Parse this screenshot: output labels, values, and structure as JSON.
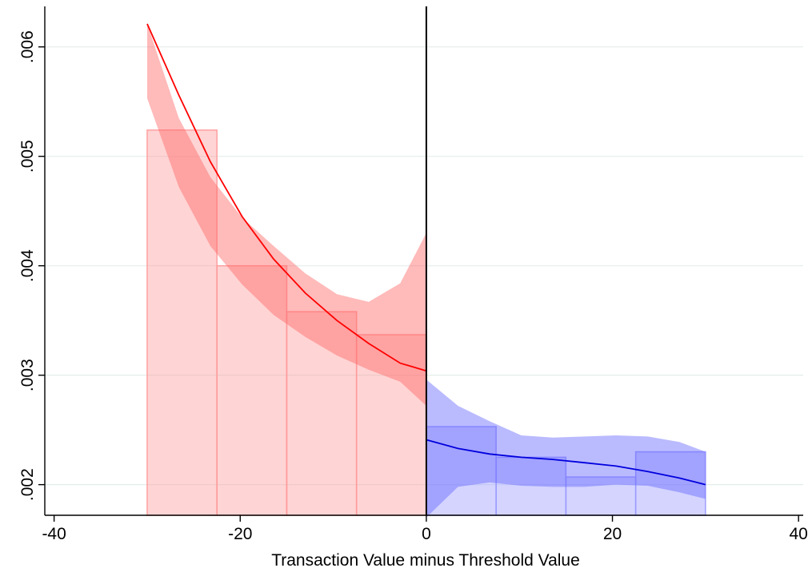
{
  "chart_data": {
    "type": "bar",
    "title": "",
    "xlabel": "Transaction Value minus Threshold Value",
    "ylabel": "",
    "xlim": [
      -41,
      40.5
    ],
    "ylim": [
      0.00172,
      0.00637
    ],
    "grid": "horizontal",
    "cutoff_x": 0,
    "x_ticks": [
      {
        "value": -40,
        "label": "-40"
      },
      {
        "value": -20,
        "label": "-20"
      },
      {
        "value": 0,
        "label": "0"
      },
      {
        "value": 20,
        "label": "20"
      },
      {
        "value": 40,
        "label": "40"
      }
    ],
    "y_ticks": [
      {
        "value": 0.002,
        "label": ".002"
      },
      {
        "value": 0.003,
        "label": ".003"
      },
      {
        "value": 0.004,
        "label": ".004"
      },
      {
        "value": 0.005,
        "label": ".005"
      },
      {
        "value": 0.006,
        "label": ".006"
      }
    ],
    "histogram_left": {
      "color": "#ff9999",
      "bins": [
        {
          "x0": -30,
          "x1": -22.5,
          "value": 0.00524
        },
        {
          "x0": -22.5,
          "x1": -15,
          "value": 0.004
        },
        {
          "x0": -15,
          "x1": -7.5,
          "value": 0.00358
        },
        {
          "x0": -7.5,
          "x1": 0,
          "value": 0.00337
        }
      ]
    },
    "histogram_right": {
      "color": "#9999ff",
      "bins": [
        {
          "x0": 0,
          "x1": 7.5,
          "value": 0.00253
        },
        {
          "x0": 7.5,
          "x1": 15,
          "value": 0.00225
        },
        {
          "x0": 15,
          "x1": 22.5,
          "value": 0.00207
        },
        {
          "x0": 22.5,
          "x1": 30,
          "value": 0.0023
        }
      ]
    },
    "series": [
      {
        "color": "#ff0000",
        "band_color": "#ff6666",
        "x": [
          -30,
          -26.6,
          -23.2,
          -19.8,
          -16.4,
          -13,
          -9.6,
          -6.2,
          -2.8,
          0
        ],
        "y": [
          0.00621,
          0.00556,
          0.00495,
          0.00445,
          0.00406,
          0.00375,
          0.0035,
          0.00329,
          0.00311,
          0.00304
        ],
        "lower": [
          0.00553,
          0.00472,
          0.00418,
          0.00383,
          0.00355,
          0.00335,
          0.00318,
          0.00305,
          0.00294,
          0.00272
        ],
        "upper": [
          0.00621,
          0.00535,
          0.00481,
          0.00444,
          0.00418,
          0.00393,
          0.00374,
          0.00367,
          0.00384,
          0.0043
        ]
      },
      {
        "color": "#0000dd",
        "band_color": "#6666ff",
        "x": [
          0,
          3.4,
          6.8,
          10.2,
          13.6,
          17,
          20.4,
          23.8,
          27.2,
          30
        ],
        "y": [
          0.00241,
          0.00233,
          0.00228,
          0.00225,
          0.00223,
          0.0022,
          0.00217,
          0.00212,
          0.00206,
          0.002
        ],
        "lower": [
          0.0017,
          0.00198,
          0.00202,
          0.00199,
          0.00198,
          0.00198,
          0.002,
          0.00199,
          0.00193,
          0.00187
        ],
        "upper": [
          0.00296,
          0.00272,
          0.00258,
          0.00245,
          0.00243,
          0.00244,
          0.00245,
          0.00244,
          0.00239,
          0.0023
        ]
      }
    ]
  }
}
